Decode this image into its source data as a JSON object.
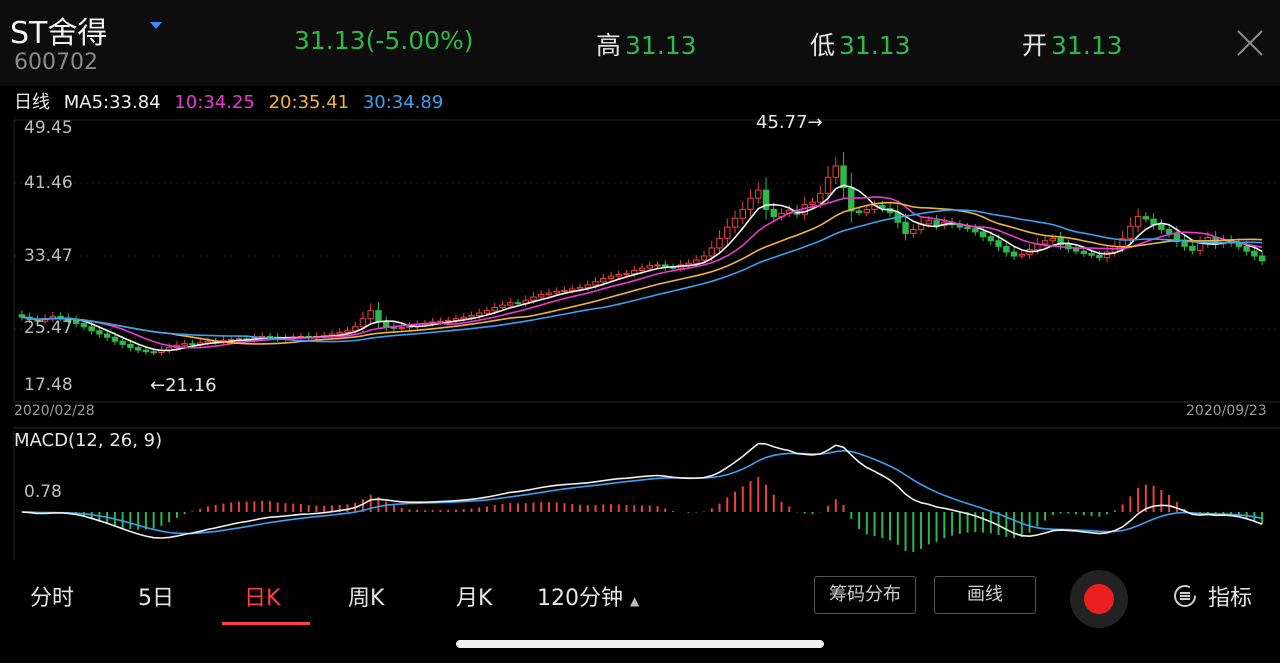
{
  "header": {
    "stock_name": "ST舍得",
    "stock_code": "600702",
    "price": "31.13",
    "change": "(-5.00%)",
    "high_label": "高",
    "high": "31.13",
    "low_label": "低",
    "low": "31.13",
    "open_label": "开",
    "open": "31.13"
  },
  "ma": {
    "period": "日线",
    "ma5": "MA5:33.84",
    "ma10": "10:34.25",
    "ma20": "20:35.41",
    "ma30": "30:34.89",
    "colors": {
      "ma5": "#f0f0f0",
      "ma10": "#e83ad0",
      "ma20": "#f0b43c",
      "ma30": "#3aa0f0"
    }
  },
  "price_axis": [
    "49.45",
    "41.46",
    "33.47",
    "25.47",
    "17.48"
  ],
  "dates": {
    "start": "2020/02/28",
    "end": "2020/09/23"
  },
  "annotations": {
    "max": "45.77→",
    "min": "←21.16"
  },
  "macd": {
    "title": "MACD(12, 26, 9)",
    "level": "0.78"
  },
  "tabs": [
    "分时",
    "5日",
    "日K",
    "周K",
    "月K",
    "120分钟"
  ],
  "active_tab": "日K",
  "buttons": {
    "chip": "筹码分布",
    "draw": "画线",
    "indicator": "指标"
  },
  "colors": {
    "up": "#e8443a",
    "down": "#2db84a",
    "bg": "#000000"
  },
  "chart_data": {
    "type": "candlestick",
    "closes": [
      25.8,
      25.5,
      25.3,
      25.6,
      25.9,
      25.7,
      25.4,
      25.0,
      24.6,
      24.1,
      23.7,
      23.3,
      22.8,
      22.4,
      22.0,
      21.7,
      21.5,
      21.4,
      21.7,
      22.0,
      22.3,
      22.5,
      22.4,
      22.6,
      22.8,
      22.7,
      22.9,
      23.0,
      23.1,
      23.0,
      23.2,
      23.4,
      23.3,
      23.1,
      23.2,
      23.3,
      23.4,
      23.2,
      23.4,
      23.5,
      23.7,
      23.9,
      24.1,
      24.6,
      25.6,
      26.6,
      25.2,
      24.6,
      24.4,
      24.5,
      24.7,
      24.9,
      25.0,
      25.2,
      25.3,
      25.4,
      25.6,
      25.8,
      26.0,
      26.3,
      26.6,
      27.0,
      27.3,
      27.6,
      27.5,
      27.9,
      28.3,
      28.6,
      28.8,
      29.0,
      29.1,
      29.3,
      29.5,
      29.8,
      30.2,
      30.6,
      30.9,
      31.1,
      31.2,
      31.6,
      31.9,
      32.2,
      32.3,
      32.0,
      31.9,
      32.3,
      32.5,
      32.9,
      33.4,
      34.4,
      35.6,
      37.0,
      38.1,
      39.2,
      40.6,
      41.6,
      39.2,
      38.3,
      38.7,
      39.1,
      38.6,
      39.8,
      40.1,
      41.2,
      43.2,
      44.6,
      41.9,
      39.0,
      38.8,
      39.2,
      39.7,
      39.3,
      38.8,
      37.6,
      36.2,
      36.7,
      37.4,
      37.8,
      37.2,
      37.6,
      37.3,
      37.0,
      36.8,
      36.4,
      35.8,
      35.3,
      34.6,
      33.9,
      33.4,
      33.6,
      34.2,
      34.9,
      35.3,
      35.6,
      34.8,
      34.3,
      34.0,
      33.7,
      33.5,
      33.2,
      33.9,
      34.6,
      35.6,
      37.1,
      38.3,
      38.0,
      37.3,
      36.7,
      36.2,
      35.2,
      34.6,
      34.1,
      35.0,
      35.7,
      34.9,
      35.4,
      35.0,
      34.6,
      34.0,
      33.4,
      32.8
    ],
    "y_axis_ticks": [
      "49.45",
      "41.46",
      "33.47",
      "25.47",
      "17.48"
    ],
    "ylim": [
      17.48,
      49.45
    ],
    "x_range": [
      "2020/02/28",
      "2020/09/23"
    ],
    "max_label": "45.77",
    "min_label": "21.16",
    "series": [
      {
        "name": "MA5",
        "value": "33.84"
      },
      {
        "name": "MA10",
        "value": "34.25"
      },
      {
        "name": "MA20",
        "value": "35.41"
      },
      {
        "name": "MA30",
        "value": "34.89"
      }
    ],
    "macd": {
      "params": "12, 26, 9",
      "tick": "0.78"
    }
  }
}
